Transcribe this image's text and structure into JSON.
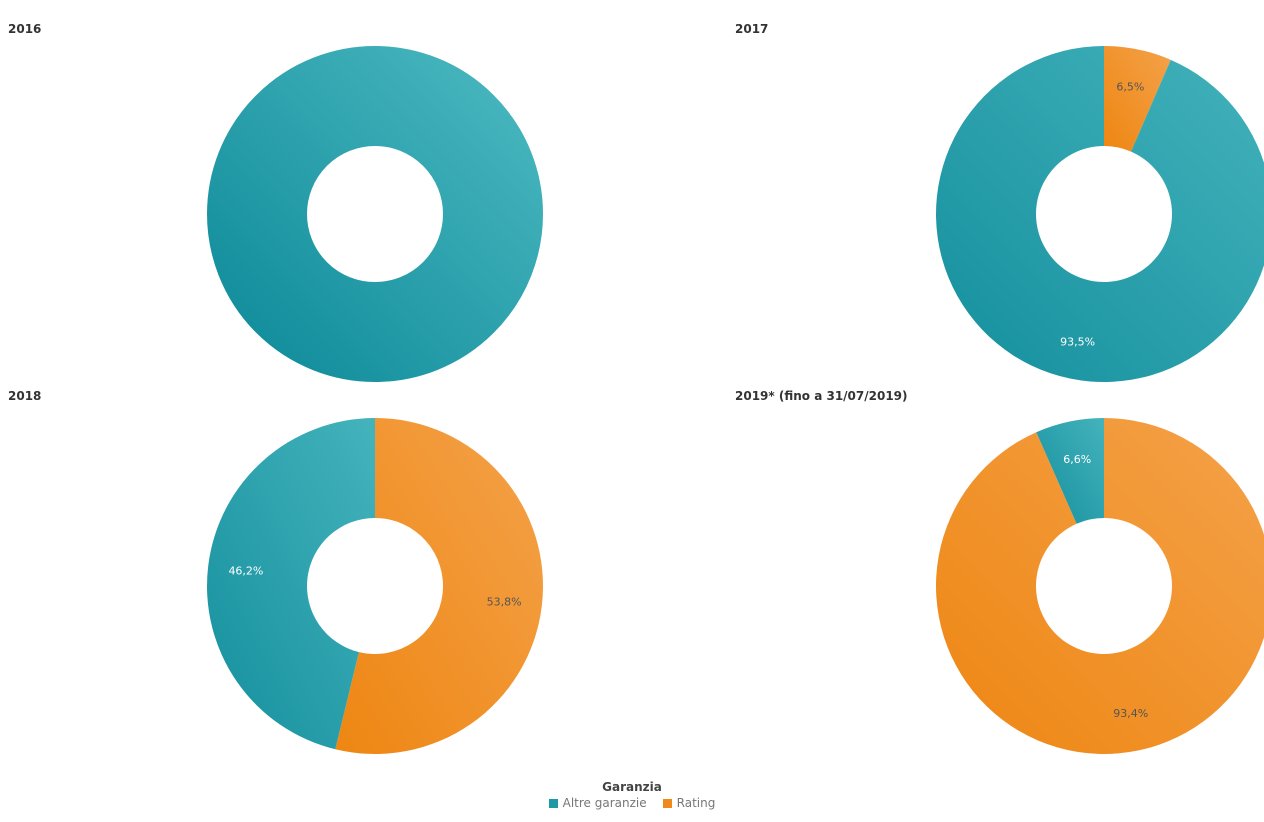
{
  "chart_data": [
    {
      "type": "pie",
      "title": "2016",
      "slices": [
        {
          "name": "Altre garanzie",
          "value": 100.0,
          "label": ""
        }
      ]
    },
    {
      "type": "pie",
      "title": "2017",
      "slices": [
        {
          "name": "Rating",
          "value": 6.5,
          "label": "6,5%"
        },
        {
          "name": "Altre garanzie",
          "value": 93.5,
          "label": "93,5%"
        }
      ]
    },
    {
      "type": "pie",
      "title": "2018",
      "slices": [
        {
          "name": "Rating",
          "value": 53.8,
          "label": "53,8%"
        },
        {
          "name": "Altre garanzie",
          "value": 46.2,
          "label": "46,2%"
        }
      ]
    },
    {
      "type": "pie",
      "title": "2019* (fino a 31/07/2019)",
      "slices": [
        {
          "name": "Rating",
          "value": 93.4,
          "label": "93,4%"
        },
        {
          "name": "Altre garanzie",
          "value": 6.6,
          "label": "6,6%"
        }
      ]
    }
  ],
  "legend": {
    "title": "Garanzia",
    "items": [
      {
        "name": "Altre garanzie",
        "color": "#1e9aa6"
      },
      {
        "name": "Rating",
        "color": "#f0891c"
      }
    ]
  },
  "colors": {
    "Altre garanzie": "#1e9aa6",
    "Rating": "#f0891c",
    "label_on_teal": "#ffffff",
    "label_on_orange": "#555555"
  }
}
